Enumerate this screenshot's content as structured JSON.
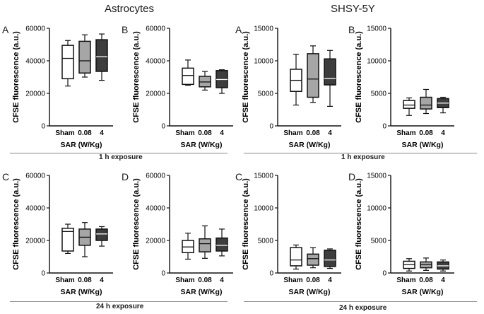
{
  "figure": {
    "group_titles": [
      "Astrocytes",
      "SHSY-5Y"
    ],
    "exposure_labels": [
      "1 h exposure",
      "1 h exposure",
      "24 h exposure",
      "24 h exposure"
    ]
  },
  "style": {
    "box_fill": {
      "Sham": "#ffffff",
      "0.08": "#a6a6a6",
      "4": "#3d3d3d"
    },
    "stroke": "#111111",
    "median_on_dark": "#ffffff"
  },
  "chart_data": [
    {
      "type": "box",
      "panel": "A",
      "cell_line": "Astrocytes",
      "exposure": "1 h exposure",
      "categories": [
        "Sham",
        "0.08",
        "4"
      ],
      "ylabel": "CFSE fluorescence (a.u.)",
      "xlabel": "SAR (W/Kg)",
      "ylim": [
        0,
        60000
      ],
      "yticks": [
        0,
        20000,
        40000,
        60000
      ],
      "boxes": [
        {
          "min": 24500,
          "q1": 29000,
          "median": 41500,
          "q3": 49500,
          "max": 52500
        },
        {
          "min": 30000,
          "q1": 32500,
          "median": 40000,
          "q3": 52000,
          "max": 56000
        },
        {
          "min": 28000,
          "q1": 33500,
          "median": 42500,
          "q3": 53000,
          "max": 56500
        }
      ]
    },
    {
      "type": "box",
      "panel": "B",
      "cell_line": "Astrocytes",
      "exposure": "1 h exposure",
      "categories": [
        "Sham",
        "0.08",
        "4"
      ],
      "ylabel": "CFSE fluorescence (a.u.)",
      "xlabel": "SAR (W/Kg)",
      "ylim": [
        0,
        60000
      ],
      "yticks": [
        0,
        20000,
        40000,
        60000
      ],
      "boxes": [
        {
          "min": 25000,
          "q1": 25500,
          "median": 31000,
          "q3": 35500,
          "max": 40500
        },
        {
          "min": 22000,
          "q1": 24000,
          "median": 27000,
          "q3": 30500,
          "max": 33500
        },
        {
          "min": 20000,
          "q1": 23500,
          "median": 28500,
          "q3": 34000,
          "max": 34500
        }
      ]
    },
    {
      "type": "box",
      "panel": "A",
      "cell_line": "SHSY-5Y",
      "exposure": "1 h exposure",
      "categories": [
        "Sham",
        "0.08",
        "4"
      ],
      "ylabel": "CFSE fluorescence (a.u.)",
      "xlabel": "SAR (W/Kg)",
      "ylim": [
        0,
        15000
      ],
      "yticks": [
        0,
        5000,
        10000,
        15000
      ],
      "boxes": [
        {
          "min": 3200,
          "q1": 5300,
          "median": 7000,
          "q3": 8700,
          "max": 11000
        },
        {
          "min": 3600,
          "q1": 4400,
          "median": 7200,
          "q3": 11100,
          "max": 12300
        },
        {
          "min": 3000,
          "q1": 6300,
          "median": 7300,
          "q3": 10300,
          "max": 11600
        }
      ]
    },
    {
      "type": "box",
      "panel": "B",
      "cell_line": "SHSY-5Y",
      "exposure": "1 h exposure",
      "categories": [
        "Sham",
        "0.08",
        "4"
      ],
      "ylabel": "CFSE fluorescence (a.u.)",
      "xlabel": "SAR (W/Kg)",
      "ylim": [
        0,
        15000
      ],
      "yticks": [
        0,
        5000,
        10000,
        15000
      ],
      "boxes": [
        {
          "min": 1600,
          "q1": 2700,
          "median": 3200,
          "q3": 3900,
          "max": 4300
        },
        {
          "min": 1900,
          "q1": 2600,
          "median": 3200,
          "q3": 4400,
          "max": 5600
        },
        {
          "min": 2000,
          "q1": 2800,
          "median": 3500,
          "q3": 4200,
          "max": 4400
        }
      ]
    },
    {
      "type": "box",
      "panel": "C",
      "cell_line": "Astrocytes",
      "exposure": "24 h exposure",
      "categories": [
        "Sham",
        "0.08",
        "4"
      ],
      "ylabel": "CFSE fluorescence (a.u.)",
      "xlabel": "SAR (W/Kg)",
      "ylim": [
        0,
        60000
      ],
      "yticks": [
        0,
        20000,
        40000,
        60000
      ],
      "boxes": [
        {
          "min": 12000,
          "q1": 13500,
          "median": 25500,
          "q3": 27500,
          "max": 30000
        },
        {
          "min": 10000,
          "q1": 17000,
          "median": 22000,
          "q3": 27000,
          "max": 31000
        },
        {
          "min": 16500,
          "q1": 20000,
          "median": 24000,
          "q3": 27000,
          "max": 28500
        }
      ]
    },
    {
      "type": "box",
      "panel": "D",
      "cell_line": "Astrocytes",
      "exposure": "24 h exposure",
      "categories": [
        "Sham",
        "0.08",
        "4"
      ],
      "ylabel": "CFSE fluorescence (a.u.)",
      "xlabel": "SAR (W/Kg)",
      "ylim": [
        0,
        60000
      ],
      "yticks": [
        0,
        20000,
        40000,
        60000
      ],
      "boxes": [
        {
          "min": 8500,
          "q1": 12500,
          "median": 16000,
          "q3": 20000,
          "max": 24500
        },
        {
          "min": 9000,
          "q1": 13000,
          "median": 18000,
          "q3": 21000,
          "max": 29000
        },
        {
          "min": 10500,
          "q1": 13500,
          "median": 17000,
          "q3": 21500,
          "max": 27000
        }
      ]
    },
    {
      "type": "box",
      "panel": "C",
      "cell_line": "SHSY-5Y",
      "exposure": "24 h exposure",
      "categories": [
        "Sham",
        "0.08",
        "4"
      ],
      "ylabel": "CFSE fluorescence (a.u.)",
      "xlabel": "SAR (W/Kg)",
      "ylim": [
        0,
        15000
      ],
      "yticks": [
        0,
        5000,
        10000,
        15000
      ],
      "boxes": [
        {
          "min": 600,
          "q1": 1100,
          "median": 2000,
          "q3": 3900,
          "max": 4300
        },
        {
          "min": 800,
          "q1": 1200,
          "median": 2200,
          "q3": 2900,
          "max": 3900
        },
        {
          "min": 700,
          "q1": 1000,
          "median": 2000,
          "q3": 3500,
          "max": 3700
        }
      ]
    },
    {
      "type": "box",
      "panel": "D",
      "cell_line": "SHSY-5Y",
      "exposure": "24 h exposure",
      "categories": [
        "Sham",
        "0.08",
        "4"
      ],
      "ylabel": "CFSE fluorescence (a.u.)",
      "xlabel": "SAR (W/Kg)",
      "ylim": [
        0,
        15000
      ],
      "yticks": [
        0,
        5000,
        10000,
        15000
      ],
      "boxes": [
        {
          "min": 300,
          "q1": 700,
          "median": 1300,
          "q3": 1800,
          "max": 2200
        },
        {
          "min": 400,
          "q1": 800,
          "median": 1300,
          "q3": 1700,
          "max": 2300
        },
        {
          "min": 300,
          "q1": 600,
          "median": 1100,
          "q3": 1700,
          "max": 2000
        }
      ]
    }
  ]
}
